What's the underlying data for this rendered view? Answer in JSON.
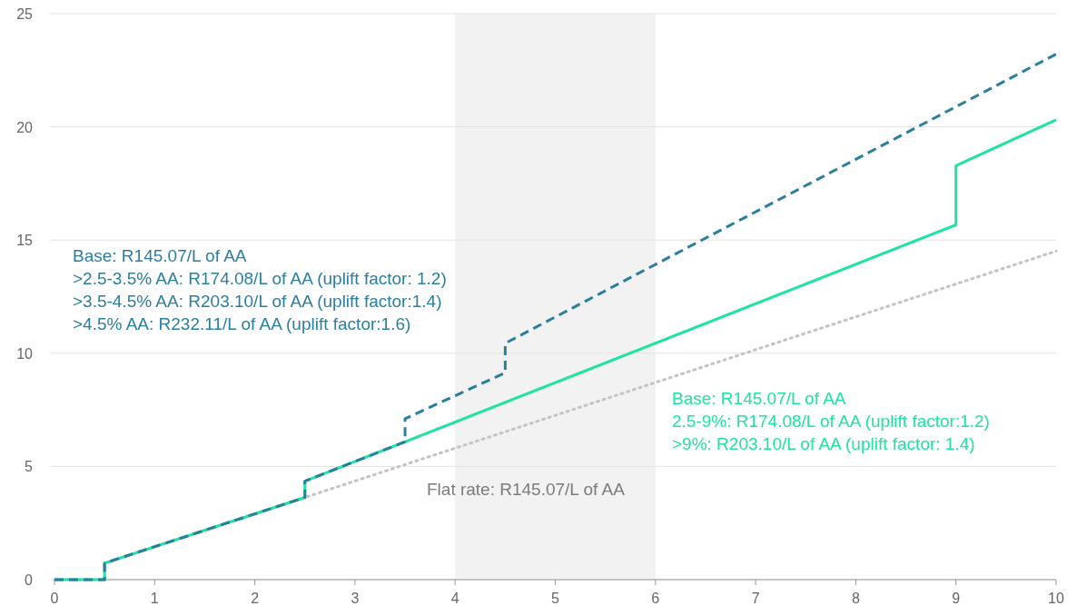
{
  "chart_data": {
    "type": "line",
    "xlim": [
      0,
      10
    ],
    "xticks": [
      0,
      1,
      2,
      3,
      4,
      5,
      6,
      7,
      8,
      9,
      10
    ],
    "ylim": [
      0,
      25
    ],
    "yticks": [
      0,
      5,
      10,
      15,
      20,
      25
    ],
    "grid": "y",
    "bands": [
      {
        "axis": "x",
        "from": 4,
        "to": 6,
        "color": "#f2f2f2"
      }
    ],
    "series": [
      {
        "name": "Flat rate: R145.07/L of AA",
        "color": "#c4c4c4",
        "line_style": "dotted",
        "x": [
          0,
          0.5,
          0.5,
          10
        ],
        "values": [
          0,
          0,
          0.73,
          14.51
        ]
      },
      {
        "name": "Base: R145.07/L of AA\n2.5-9%: R174.08/L of AA (uplift factor:1.2)\n>9%: R203.10/L of AA (uplift factor: 1.4)",
        "color": "#1ee3a3",
        "line_style": "solid",
        "x": [
          0,
          0.5,
          0.5,
          2.5,
          2.5,
          9,
          9,
          10
        ],
        "values": [
          0,
          0,
          0.73,
          3.63,
          4.35,
          15.67,
          18.28,
          20.31
        ]
      },
      {
        "name": "Base: R145.07/L of AA\n>2.5-3.5% AA: R174.08/L of AA (uplift factor: 1.2)\n>3.5-4.5% AA: R203.10/L of AA (uplift factor:1.4)\n>4.5% AA: R232.11/L of AA (uplift factor:1.6)",
        "color": "#2a7f9f",
        "line_style": "dashed",
        "x": [
          0,
          0.5,
          0.5,
          2.5,
          2.5,
          3.5,
          3.5,
          4.5,
          4.5,
          10
        ],
        "values": [
          0,
          0,
          0.73,
          3.63,
          4.35,
          6.09,
          7.11,
          9.14,
          10.44,
          23.21
        ]
      }
    ]
  }
}
